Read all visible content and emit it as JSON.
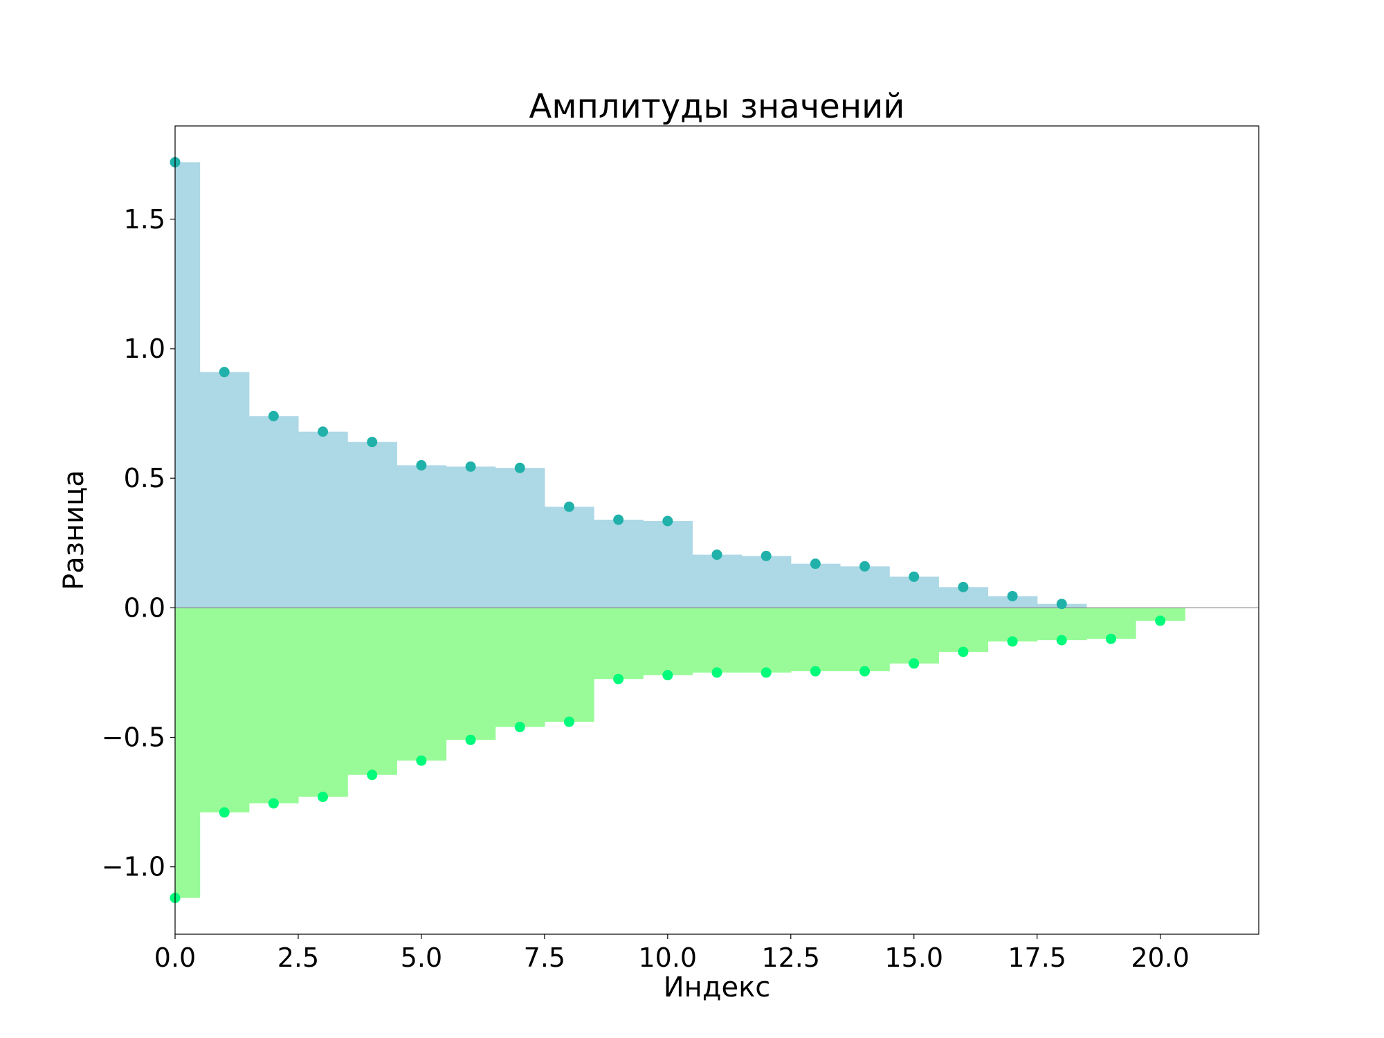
{
  "chart_data": {
    "type": "bar",
    "title": "Амплитуды значений",
    "xlabel": "Индекс",
    "ylabel": "Разница",
    "xlim": [
      0,
      22
    ],
    "ylim": [
      -1.26,
      1.86
    ],
    "xticks": [
      0,
      2.5,
      5,
      7.5,
      10,
      12.5,
      15,
      17.5,
      20
    ],
    "xtick_labels": [
      "0.0",
      "2.5",
      "5.0",
      "7.5",
      "10.0",
      "12.5",
      "15.0",
      "17.5",
      "20.0"
    ],
    "yticks": [
      -1.0,
      -0.5,
      0.0,
      0.5,
      1.0,
      1.5
    ],
    "ytick_labels": [
      "−1.0",
      "−0.5",
      "0.0",
      "0.5",
      "1.0",
      "1.5"
    ],
    "grid": false,
    "legend": "none",
    "series": [
      {
        "fill_color": "#add8e6",
        "marker_color": "#20b2aa",
        "x": [
          0,
          1,
          2,
          3,
          4,
          5,
          6,
          7,
          8,
          9,
          10,
          11,
          12,
          13,
          14,
          15,
          16,
          17,
          18
        ],
        "values": [
          1.72,
          0.91,
          0.74,
          0.68,
          0.64,
          0.55,
          0.545,
          0.54,
          0.39,
          0.34,
          0.335,
          0.205,
          0.2,
          0.17,
          0.16,
          0.12,
          0.08,
          0.045,
          0.015
        ]
      },
      {
        "fill_color": "#98fb98",
        "marker_color": "#00fa7a",
        "x": [
          0,
          1,
          2,
          3,
          4,
          5,
          6,
          7,
          8,
          9,
          10,
          11,
          12,
          13,
          14,
          15,
          16,
          17,
          18,
          19,
          20
        ],
        "values": [
          -1.12,
          -0.79,
          -0.755,
          -0.73,
          -0.645,
          -0.59,
          -0.51,
          -0.46,
          -0.44,
          -0.275,
          -0.26,
          -0.25,
          -0.25,
          -0.245,
          -0.245,
          -0.215,
          -0.17,
          -0.13,
          -0.125,
          -0.12,
          -0.05
        ]
      }
    ]
  }
}
